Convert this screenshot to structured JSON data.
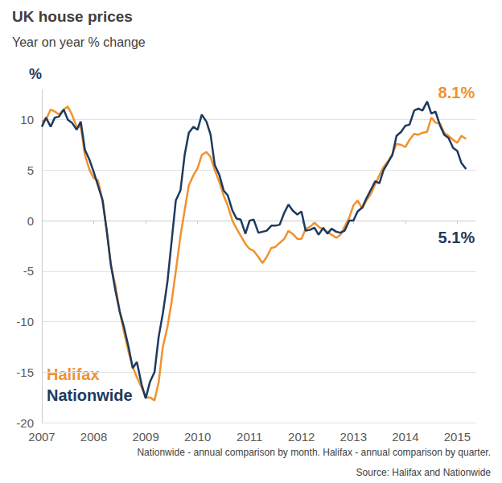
{
  "chart_data": {
    "type": "line",
    "title": "UK house prices",
    "subtitle": "Year on year % change",
    "ylabel": "%",
    "notes": [
      "Nationwide - annual comparison by month. Halifax - annual comparison by quarter.",
      "Source: Halifax and Nationwide"
    ],
    "x": [
      2007,
      2007.08,
      2007.17,
      2007.25,
      2007.33,
      2007.42,
      2007.5,
      2007.58,
      2007.67,
      2007.75,
      2007.83,
      2007.92,
      2008,
      2008.08,
      2008.17,
      2008.25,
      2008.33,
      2008.42,
      2008.5,
      2008.58,
      2008.67,
      2008.75,
      2008.83,
      2008.92,
      2009,
      2009.08,
      2009.17,
      2009.25,
      2009.33,
      2009.42,
      2009.5,
      2009.58,
      2009.67,
      2009.75,
      2009.83,
      2009.92,
      2010,
      2010.08,
      2010.17,
      2010.25,
      2010.33,
      2010.42,
      2010.5,
      2010.58,
      2010.67,
      2010.75,
      2010.83,
      2010.92,
      2011,
      2011.08,
      2011.17,
      2011.25,
      2011.33,
      2011.42,
      2011.5,
      2011.58,
      2011.67,
      2011.75,
      2011.83,
      2011.92,
      2012,
      2012.08,
      2012.17,
      2012.25,
      2012.33,
      2012.42,
      2012.5,
      2012.58,
      2012.67,
      2012.75,
      2012.83,
      2012.92,
      2013,
      2013.08,
      2013.17,
      2013.25,
      2013.33,
      2013.42,
      2013.5,
      2013.58,
      2013.67,
      2013.75,
      2013.83,
      2013.92,
      2014,
      2014.08,
      2014.17,
      2014.25,
      2014.33,
      2014.42,
      2014.5,
      2014.58,
      2014.67,
      2014.75,
      2014.83,
      2014.92,
      2015,
      2015.08,
      2015.17
    ],
    "series": [
      {
        "name": "Halifax",
        "color": "#f0922e",
        "values": [
          9.8,
          10.0,
          11.0,
          10.8,
          10.5,
          11.0,
          11.3,
          10.5,
          9.3,
          9.3,
          6.5,
          5.0,
          4.2,
          4.0,
          2.0,
          -1.0,
          -4.4,
          -6.5,
          -9.0,
          -11.0,
          -13.0,
          -14.5,
          -15.5,
          -16.5,
          -17.5,
          -17.5,
          -17.8,
          -16.0,
          -12.5,
          -10.5,
          -8.0,
          -5.0,
          -1.5,
          1.0,
          3.5,
          4.5,
          5.2,
          6.5,
          6.8,
          6.3,
          5.0,
          3.8,
          2.5,
          1.5,
          0.0,
          -0.8,
          -1.5,
          -2.3,
          -2.8,
          -3.0,
          -3.6,
          -4.2,
          -3.6,
          -2.7,
          -2.6,
          -2.2,
          -1.8,
          -1.0,
          -1.3,
          -1.8,
          -1.8,
          -0.8,
          -0.6,
          -0.2,
          -0.6,
          -0.9,
          -1.1,
          -1.4,
          -1.7,
          -1.4,
          -0.6,
          0.3,
          1.5,
          2.0,
          1.2,
          2.0,
          2.6,
          3.6,
          4.5,
          5.3,
          5.9,
          6.6,
          7.6,
          7.5,
          7.3,
          8.0,
          8.6,
          8.5,
          8.7,
          8.8,
          10.2,
          9.7,
          9.6,
          8.7,
          8.4,
          8.0,
          7.7,
          8.4,
          8.1
        ],
        "value_labels": [
          null,
          null,
          null,
          null,
          null,
          null,
          null,
          null,
          null,
          null,
          null,
          null,
          null,
          null,
          null,
          null,
          null,
          null,
          null,
          null,
          null,
          null,
          null,
          null,
          null,
          null,
          null,
          null,
          null,
          null,
          null,
          null,
          null,
          null,
          null,
          null,
          null,
          null,
          null,
          null,
          null,
          null,
          null,
          null,
          null,
          null,
          null,
          null,
          null,
          null,
          null,
          null,
          null,
          null,
          null,
          null,
          null,
          null,
          null,
          null,
          null,
          null,
          null,
          null,
          null,
          null,
          null,
          null,
          null,
          null,
          null,
          null,
          null,
          null,
          null,
          null,
          null,
          null,
          null,
          null,
          null,
          null,
          null,
          null,
          null,
          null,
          null,
          null,
          null,
          null,
          null,
          null,
          null,
          null,
          null,
          null,
          null,
          null,
          "8.1%"
        ]
      },
      {
        "name": "Nationwide",
        "color": "#1d3a5f",
        "values": [
          9.3,
          10.2,
          9.3,
          10.2,
          10.3,
          11.0,
          10.0,
          9.7,
          9.0,
          9.8,
          7.0,
          6.0,
          4.8,
          3.5,
          2.0,
          -1.0,
          -4.4,
          -7.0,
          -9.0,
          -10.5,
          -12.5,
          -14.6,
          -14.0,
          -16.2,
          -17.6,
          -16.0,
          -15.0,
          -11.5,
          -9.2,
          -6.0,
          -2.0,
          2.0,
          3.0,
          6.5,
          8.7,
          9.3,
          9.0,
          10.5,
          9.8,
          8.5,
          5.5,
          4.5,
          3.0,
          2.5,
          1.0,
          0.2,
          0.1,
          -1.3,
          0.0,
          0.1,
          -1.2,
          -1.1,
          -1.0,
          -0.5,
          -0.5,
          -0.4,
          0.8,
          1.6,
          1.0,
          0.6,
          0.9,
          -1.0,
          -0.9,
          -0.7,
          -1.4,
          -0.7,
          -1.3,
          -0.8,
          -1.1,
          -1.2,
          -1.0,
          0.0,
          0.0,
          0.9,
          1.3,
          2.2,
          3.0,
          3.9,
          3.7,
          5.0,
          5.8,
          6.5,
          8.4,
          8.8,
          9.4,
          9.5,
          10.9,
          11.1,
          10.9,
          11.8,
          10.6,
          10.8,
          9.4,
          8.5,
          8.2,
          7.2,
          6.9,
          5.7,
          5.1
        ],
        "value_labels": [
          null,
          null,
          null,
          null,
          null,
          null,
          null,
          null,
          null,
          null,
          null,
          null,
          null,
          null,
          null,
          null,
          null,
          null,
          null,
          null,
          null,
          null,
          null,
          null,
          null,
          null,
          null,
          null,
          null,
          null,
          null,
          null,
          null,
          null,
          null,
          null,
          null,
          null,
          null,
          null,
          null,
          null,
          null,
          null,
          null,
          null,
          null,
          null,
          null,
          null,
          null,
          null,
          null,
          null,
          null,
          null,
          null,
          null,
          null,
          null,
          null,
          null,
          null,
          null,
          null,
          null,
          null,
          null,
          null,
          null,
          null,
          null,
          null,
          null,
          null,
          null,
          null,
          null,
          null,
          null,
          null,
          null,
          null,
          null,
          null,
          null,
          null,
          null,
          null,
          null,
          null,
          null,
          null,
          null,
          null,
          null,
          null,
          null,
          "5.1%"
        ]
      }
    ],
    "xlim": [
      2007,
      2015.35
    ],
    "xticks": [
      2007,
      2008,
      2009,
      2010,
      2011,
      2012,
      2013,
      2014,
      2015
    ],
    "ylim": [
      -20,
      13
    ],
    "yticks": [
      -20,
      -15,
      -10,
      -5,
      0,
      5,
      10
    ],
    "grid": true
  }
}
